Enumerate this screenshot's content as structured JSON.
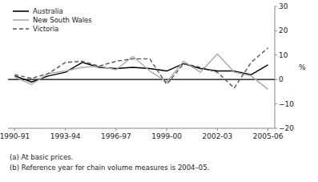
{
  "chart_data": {
    "type": "line",
    "categories": [
      "1990-91",
      null,
      null,
      "1993-94",
      null,
      null,
      "1996-97",
      null,
      null,
      "1999-00",
      null,
      null,
      "2002-03",
      null,
      null,
      "2005-06"
    ],
    "series": [
      {
        "name": "Australia",
        "color": "#000000",
        "line_style": "solid",
        "values": [
          1.5,
          -1.0,
          1.5,
          3.0,
          7.0,
          5.0,
          4.5,
          5.0,
          4.5,
          3.5,
          6.5,
          4.5,
          3.5,
          3.5,
          2.0,
          6.0
        ]
      },
      {
        "name": "New South Wales",
        "color": "#aaaaaa",
        "line_style": "solid",
        "values": [
          1.0,
          -2.0,
          2.5,
          3.5,
          5.0,
          5.5,
          4.0,
          9.5,
          3.5,
          -1.0,
          7.5,
          3.0,
          10.5,
          3.0,
          1.5,
          -4.0
        ]
      },
      {
        "name": "Victoria",
        "color": "#555555",
        "line_style": "dashed",
        "values": [
          2.0,
          0.5,
          2.5,
          7.0,
          7.5,
          5.5,
          7.5,
          8.5,
          8.5,
          -2.0,
          6.5,
          5.0,
          3.0,
          -3.5,
          7.0,
          13.0
        ]
      }
    ],
    "ylabel": "%",
    "ylim": [
      -20,
      30
    ],
    "yticks": [
      {
        "value": -20,
        "label": "−20"
      },
      {
        "value": -10,
        "label": "−10"
      },
      0,
      10,
      20,
      30
    ],
    "legend": "upper left",
    "annotations": [
      "(a) At basic prices.",
      "(b) Reference year for chain volume measures is 2004–05."
    ]
  }
}
